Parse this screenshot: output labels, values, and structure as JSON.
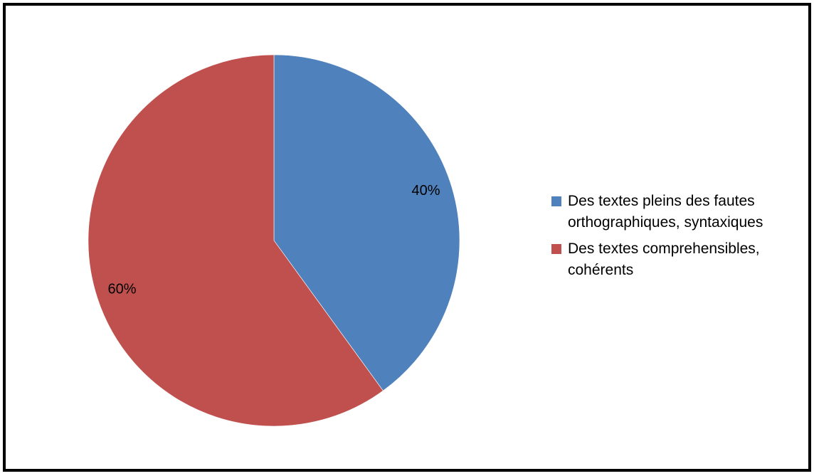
{
  "chart_data": {
    "type": "pie",
    "title": "",
    "slices": [
      {
        "label": "Des textes pleins des fautes orthographiques, syntaxiques",
        "value": 40,
        "data_label": "40%",
        "color": "#4F81BD"
      },
      {
        "label": "Des textes comprehensibles, cohérents",
        "value": 60,
        "data_label": "60%",
        "color": "#C0504D"
      }
    ],
    "legend_position": "right",
    "start_angle": "12 o'clock",
    "direction": "clockwise"
  },
  "legend": {
    "items": [
      {
        "label": "Des textes pleins des fautes orthographiques, syntaxiques",
        "color": "#4F81BD"
      },
      {
        "label": "Des textes comprehensibles, cohérents",
        "color": "#C0504D"
      }
    ]
  }
}
